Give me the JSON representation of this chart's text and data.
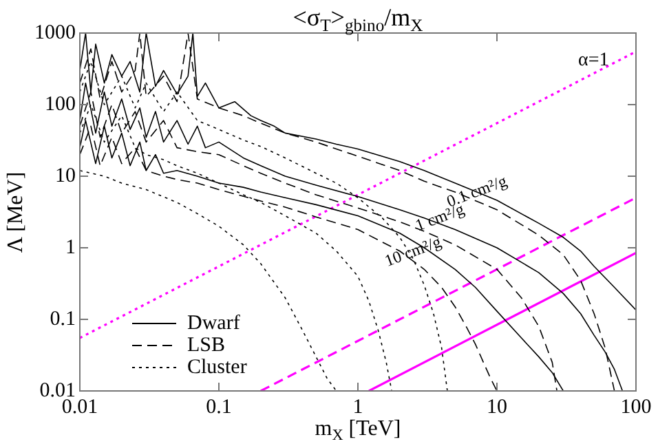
{
  "chart_data": {
    "type": "line",
    "title": "<σ$_{T}$>$_{gbino}$/m$_{X}$",
    "xlabel": "m$_{X}$ [TeV]",
    "ylabel": "Λ [MeV]",
    "log": "xy",
    "xlim": [
      0.01,
      100
    ],
    "ylim": [
      0.01,
      1000
    ],
    "xticks": [
      0.01,
      0.1,
      1,
      10,
      100
    ],
    "yticks": [
      0.01,
      0.1,
      1,
      10,
      100,
      1000
    ],
    "grid": false,
    "legend": "bottom left",
    "marker": "none",
    "annotations": [
      "α=1",
      {
        "text": "0.1 cm²/g",
        "x": 7.2,
        "y": 6
      },
      {
        "text": "1 cm²/g",
        "x": 3.9,
        "y": 2.6
      },
      {
        "text": "10 cm²/g",
        "x": 2.5,
        "y": 0.87
      }
    ],
    "series": [
      {
        "name": "Dwarf",
        "color": "#000000",
        "line_style": "solid",
        "x": [
          0.01,
          0.011,
          0.012,
          0.013,
          0.015,
          0.017,
          0.02,
          0.023,
          0.027,
          0.03,
          0.035,
          0.04,
          0.05,
          0.06,
          0.065,
          0.07,
          0.08,
          0.1,
          0.13,
          0.17,
          0.2,
          0.25,
          0.3,
          0.5,
          0.7,
          1,
          2,
          3,
          5,
          10,
          20,
          30,
          40,
          50,
          70,
          100
        ],
        "values": [
          300,
          1000,
          150,
          700,
          200,
          500,
          250,
          400,
          150,
          1000,
          180,
          300,
          140,
          250,
          1000,
          130,
          200,
          90,
          110,
          70,
          60,
          50,
          40,
          33,
          28,
          24,
          16,
          12,
          8,
          4.6,
          2.2,
          1.4,
          0.9,
          0.55,
          0.28,
          0.135
        ]
      },
      {
        "name": "LSB",
        "color": "#000000",
        "line_style": "dashed",
        "x": [
          0.01,
          0.012,
          0.014,
          0.017,
          0.02,
          0.025,
          0.027,
          0.03,
          0.04,
          0.05,
          0.06,
          0.07,
          0.1,
          0.15,
          0.2,
          0.3,
          0.5,
          1,
          2,
          3,
          5,
          10,
          20,
          30,
          40,
          50,
          60,
          70
        ],
        "values": [
          200,
          600,
          120,
          400,
          150,
          300,
          1000,
          130,
          250,
          110,
          1000,
          120,
          90,
          70,
          55,
          40,
          30,
          19,
          12,
          8.5,
          6,
          3.4,
          1.5,
          0.8,
          0.35,
          0.12,
          0.04,
          0.01
        ]
      },
      {
        "name": "Cluster",
        "color": "#000000",
        "line_style": "dotted",
        "x": [
          0.01,
          0.012,
          0.015,
          0.02,
          0.025,
          0.03,
          0.04,
          0.05,
          0.07,
          0.1,
          0.15,
          0.2,
          0.3,
          0.5,
          0.7,
          1,
          1.5,
          2,
          2.5,
          3,
          3.5,
          4,
          4.4
        ],
        "values": [
          150,
          400,
          100,
          250,
          90,
          200,
          80,
          150,
          60,
          45,
          32,
          26,
          18,
          11,
          8,
          5,
          2.6,
          1.4,
          0.7,
          0.3,
          0.12,
          0.04,
          0.01
        ]
      },
      {
        "color": "#000000",
        "line_style": "solid",
        "x": [
          0.01,
          0.011,
          0.013,
          0.015,
          0.017,
          0.02,
          0.023,
          0.027,
          0.03,
          0.035,
          0.04,
          0.05,
          0.06,
          0.07,
          0.08,
          0.1,
          0.15,
          0.2,
          0.3,
          0.5,
          1,
          2,
          3,
          5,
          10,
          20,
          30,
          40,
          50,
          60,
          70,
          80
        ],
        "values": [
          60,
          200,
          40,
          150,
          50,
          120,
          45,
          90,
          35,
          80,
          30,
          60,
          28,
          50,
          25,
          30,
          18,
          14,
          10,
          7.5,
          5.2,
          3.4,
          2.6,
          1.8,
          1,
          0.45,
          0.23,
          0.12,
          0.06,
          0.035,
          0.02,
          0.01
        ]
      },
      {
        "color": "#000000",
        "line_style": "dashed",
        "x": [
          0.01,
          0.012,
          0.014,
          0.017,
          0.02,
          0.025,
          0.03,
          0.04,
          0.05,
          0.07,
          0.1,
          0.15,
          0.2,
          0.3,
          0.5,
          1,
          2,
          3,
          5,
          10,
          15,
          20,
          25,
          27
        ],
        "values": [
          50,
          150,
          35,
          100,
          40,
          80,
          30,
          60,
          25,
          22,
          20,
          14,
          11,
          8,
          5.5,
          3.6,
          2.3,
          1.7,
          1.1,
          0.5,
          0.2,
          0.08,
          0.025,
          0.01
        ]
      },
      {
        "color": "#000000",
        "line_style": "dotted",
        "x": [
          0.01,
          0.012,
          0.015,
          0.02,
          0.025,
          0.03,
          0.04,
          0.05,
          0.07,
          0.1,
          0.15,
          0.2,
          0.3,
          0.5,
          0.7,
          1,
          1.2,
          1.4,
          1.6,
          1.75
        ],
        "values": [
          40,
          100,
          30,
          70,
          25,
          20,
          17,
          14,
          11,
          8,
          5.5,
          4.3,
          2.8,
          1.6,
          0.9,
          0.4,
          0.18,
          0.07,
          0.025,
          0.01
        ]
      },
      {
        "color": "#000000",
        "line_style": "solid",
        "x": [
          0.01,
          0.011,
          0.013,
          0.015,
          0.017,
          0.02,
          0.023,
          0.027,
          0.03,
          0.035,
          0.04,
          0.05,
          0.07,
          0.1,
          0.15,
          0.2,
          0.3,
          0.5,
          1,
          2,
          3,
          5,
          7,
          10,
          15,
          20,
          25,
          30
        ],
        "values": [
          25,
          60,
          15,
          50,
          18,
          40,
          14,
          30,
          12,
          20,
          11,
          12,
          10,
          8,
          7,
          6,
          5,
          4,
          2.8,
          1.6,
          1,
          0.5,
          0.28,
          0.13,
          0.055,
          0.03,
          0.018,
          0.01
        ]
      },
      {
        "color": "#000000",
        "line_style": "dashed",
        "x": [
          0.01,
          0.012,
          0.014,
          0.017,
          0.02,
          0.025,
          0.03,
          0.04,
          0.05,
          0.07,
          0.1,
          0.2,
          0.3,
          0.5,
          1,
          2,
          3,
          4,
          5,
          6,
          7,
          8,
          9,
          10
        ],
        "values": [
          20,
          50,
          14,
          35,
          15,
          25,
          12,
          10,
          9,
          8,
          6.5,
          4.5,
          3.7,
          2.7,
          1.8,
          0.9,
          0.5,
          0.28,
          0.15,
          0.08,
          0.045,
          0.025,
          0.015,
          0.01
        ]
      },
      {
        "color": "#000000",
        "line_style": "dotted",
        "x": [
          0.01,
          0.015,
          0.02,
          0.03,
          0.05,
          0.07,
          0.1,
          0.15,
          0.2,
          0.3,
          0.4,
          0.5,
          0.6,
          0.7
        ],
        "values": [
          12,
          10,
          8,
          6.5,
          4.3,
          3,
          2,
          1.1,
          0.6,
          0.2,
          0.07,
          0.03,
          0.015,
          0.01
        ]
      },
      {
        "color": "#ff00ff",
        "line_style": "dotted",
        "x": [
          0.01,
          100
        ],
        "values": [
          0.055,
          550
        ]
      },
      {
        "color": "#ff00ff",
        "line_style": "dashed",
        "x": [
          0.2,
          100
        ],
        "values": [
          0.01,
          5
        ]
      },
      {
        "color": "#ff00ff",
        "line_style": "solid",
        "x": [
          1.2,
          100
        ],
        "values": [
          0.01,
          0.85
        ]
      }
    ]
  }
}
